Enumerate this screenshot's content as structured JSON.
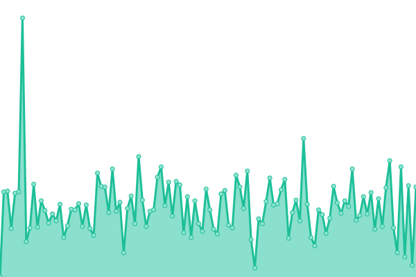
{
  "chart_data": {
    "type": "area",
    "title": "",
    "xlabel": "",
    "ylabel": "",
    "ylim": [
      0,
      400
    ],
    "grid": false,
    "legend": "none",
    "axes_visible": false,
    "markers": true,
    "colors": {
      "line": "#1dbf98",
      "fill": "#8ae0cc",
      "marker_fill": "#8ee3cf",
      "marker_stroke": "#1dbf98"
    },
    "values": [
      0,
      123,
      124,
      70,
      121,
      123,
      374,
      51,
      71,
      134,
      72,
      110,
      96,
      78,
      91,
      81,
      105,
      57,
      74,
      98,
      97,
      106,
      73,
      104,
      70,
      60,
      150,
      131,
      130,
      93,
      156,
      95,
      108,
      35,
      99,
      117,
      77,
      174,
      111,
      73,
      95,
      97,
      144,
      159,
      103,
      137,
      88,
      138,
      133,
      64,
      116,
      57,
      110,
      77,
      66,
      127,
      97,
      69,
      62,
      120,
      125,
      75,
      71,
      147,
      130,
      99,
      153,
      54,
      13,
      84,
      77,
      109,
      143,
      104,
      106,
      126,
      141,
      56,
      93,
      111,
      81,
      200,
      105,
      57,
      45,
      97,
      90,
      63,
      85,
      131,
      107,
      92,
      110,
      102,
      156,
      82,
      89,
      116,
      91,
      122,
      69,
      113,
      73,
      129,
      168,
      71,
      35,
      159,
      29,
      132,
      17,
      130
    ]
  }
}
